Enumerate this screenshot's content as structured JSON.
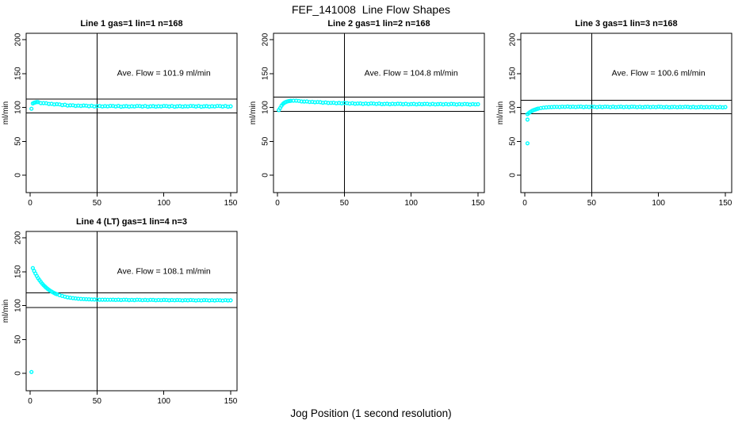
{
  "figure_title": "FEF_141008  Line Flow Shapes",
  "xlabel": "Jog Position (1 second resolution)",
  "colors": {
    "points": "#00FFFF",
    "axis": "#000000",
    "background": "#FFFFFF"
  },
  "chart_data": [
    {
      "type": "scatter",
      "title": "Line 1 gas=1 lin=1 n=168",
      "ylabel": "ml/min",
      "annotation": "Ave. Flow =  101.9   ml/min",
      "ave_flow": 101.9,
      "xlim": [
        0,
        150
      ],
      "ylim": [
        0,
        200
      ],
      "xticks": [
        0,
        50,
        100,
        150
      ],
      "yticks": [
        0,
        50,
        100,
        150,
        200
      ],
      "vline_x": 50,
      "hlines": [
        112.1,
        91.7
      ],
      "marker": "open-circle",
      "color": "#00FFFF",
      "grid": false,
      "legend": "none",
      "points": [
        [
          1,
          98
        ],
        [
          2,
          105.9
        ],
        [
          3,
          106.9
        ],
        [
          4,
          107.5
        ],
        [
          5,
          107.9
        ],
        [
          6,
          107.8
        ],
        [
          8,
          106.3
        ],
        [
          10,
          106.3
        ],
        [
          12,
          106.2
        ],
        [
          14,
          105.1
        ],
        [
          16,
          105.3
        ],
        [
          18,
          104.5
        ],
        [
          20,
          104.8
        ],
        [
          22,
          104.4
        ],
        [
          24,
          103.4
        ],
        [
          26,
          104.0
        ],
        [
          28,
          102.7
        ],
        [
          30,
          103.0
        ],
        [
          32,
          103.1
        ],
        [
          34,
          102.2
        ],
        [
          36,
          102.7
        ],
        [
          38,
          102.2
        ],
        [
          40,
          102.8
        ],
        [
          42,
          102.6
        ],
        [
          44,
          101.8
        ],
        [
          46,
          102.5
        ],
        [
          48,
          101.4
        ],
        [
          50,
          101.9
        ],
        [
          52,
          102.1
        ],
        [
          54,
          101.4
        ],
        [
          56,
          102.0
        ],
        [
          58,
          101.5
        ],
        [
          60,
          102.2
        ],
        [
          62,
          102.1
        ],
        [
          64,
          101.4
        ],
        [
          66,
          102.2
        ],
        [
          68,
          101.1
        ],
        [
          70,
          101.6
        ],
        [
          72,
          101.9
        ],
        [
          74,
          101.2
        ],
        [
          76,
          101.8
        ],
        [
          78,
          101.4
        ],
        [
          80,
          102.1
        ],
        [
          82,
          102.0
        ],
        [
          84,
          101.3
        ],
        [
          86,
          102.1
        ],
        [
          88,
          101.1
        ],
        [
          90,
          101.6
        ],
        [
          92,
          101.9
        ],
        [
          94,
          101.2
        ],
        [
          96,
          101.8
        ],
        [
          98,
          101.4
        ],
        [
          100,
          102.1
        ],
        [
          102,
          102.0
        ],
        [
          104,
          101.3
        ],
        [
          106,
          102.1
        ],
        [
          108,
          101.1
        ],
        [
          110,
          101.6
        ],
        [
          112,
          101.9
        ],
        [
          114,
          101.2
        ],
        [
          116,
          101.8
        ],
        [
          118,
          101.4
        ],
        [
          120,
          102.1
        ],
        [
          122,
          102.0
        ],
        [
          124,
          101.3
        ],
        [
          126,
          102.1
        ],
        [
          128,
          101.1
        ],
        [
          130,
          101.6
        ],
        [
          132,
          101.9
        ],
        [
          134,
          101.2
        ],
        [
          136,
          101.8
        ],
        [
          138,
          101.4
        ],
        [
          140,
          102.1
        ],
        [
          142,
          102.0
        ],
        [
          144,
          101.3
        ],
        [
          146,
          102.1
        ],
        [
          148,
          101.1
        ],
        [
          150,
          101.6
        ]
      ]
    },
    {
      "type": "scatter",
      "title": "Line 2 gas=1 lin=2 n=168",
      "ylabel": "ml/min",
      "annotation": "Ave. Flow =  104.8   ml/min",
      "ave_flow": 104.8,
      "xlim": [
        0,
        150
      ],
      "ylim": [
        0,
        200
      ],
      "xticks": [
        0,
        50,
        100,
        150
      ],
      "yticks": [
        0,
        50,
        100,
        150,
        200
      ],
      "vline_x": 50,
      "hlines": [
        115.3,
        94.3
      ],
      "marker": "open-circle",
      "color": "#00FFFF",
      "grid": false,
      "legend": "none",
      "points": [
        [
          1,
          96
        ],
        [
          2,
          99.0
        ],
        [
          3,
          102.5
        ],
        [
          4,
          104.9
        ],
        [
          5,
          106.5
        ],
        [
          6,
          107.7
        ],
        [
          7,
          108.5
        ],
        [
          8,
          109.1
        ],
        [
          9,
          109.5
        ],
        [
          10,
          109.8
        ],
        [
          12,
          110.0
        ],
        [
          14,
          109.9
        ],
        [
          16,
          109.6
        ],
        [
          18,
          108.8
        ],
        [
          20,
          108.7
        ],
        [
          22,
          108.8
        ],
        [
          24,
          107.9
        ],
        [
          26,
          108.2
        ],
        [
          28,
          107.6
        ],
        [
          30,
          108.0
        ],
        [
          32,
          107.7
        ],
        [
          34,
          106.9
        ],
        [
          36,
          107.4
        ],
        [
          38,
          106.5
        ],
        [
          40,
          106.7
        ],
        [
          42,
          106.9
        ],
        [
          44,
          106.1
        ],
        [
          46,
          106.5
        ],
        [
          48,
          106.0
        ],
        [
          50,
          106.5
        ],
        [
          52,
          106.3
        ],
        [
          54,
          105.6
        ],
        [
          56,
          106.2
        ],
        [
          58,
          105.4
        ],
        [
          60,
          105.7
        ],
        [
          62,
          105.9
        ],
        [
          64,
          105.2
        ],
        [
          66,
          105.7
        ],
        [
          68,
          105.1
        ],
        [
          70,
          105.8
        ],
        [
          72,
          105.6
        ],
        [
          74,
          105.0
        ],
        [
          76,
          105.7
        ],
        [
          78,
          104.8
        ],
        [
          80,
          105.2
        ],
        [
          82,
          105.4
        ],
        [
          84,
          104.7
        ],
        [
          86,
          105.3
        ],
        [
          88,
          104.9
        ],
        [
          90,
          105.4
        ],
        [
          92,
          105.3
        ],
        [
          94,
          104.7
        ],
        [
          96,
          105.3
        ],
        [
          98,
          104.5
        ],
        [
          100,
          104.9
        ],
        [
          102,
          105.2
        ],
        [
          104,
          104.5
        ],
        [
          106,
          105.1
        ],
        [
          108,
          104.7
        ],
        [
          110,
          105.2
        ],
        [
          112,
          105.1
        ],
        [
          114,
          104.5
        ],
        [
          116,
          105.1
        ],
        [
          118,
          104.4
        ],
        [
          120,
          104.8
        ],
        [
          122,
          105.0
        ],
        [
          124,
          104.4
        ],
        [
          126,
          105.0
        ],
        [
          128,
          104.5
        ],
        [
          130,
          105.1
        ],
        [
          132,
          104.9
        ],
        [
          134,
          104.3
        ],
        [
          136,
          104.9
        ],
        [
          138,
          104.4
        ],
        [
          140,
          105.0
        ],
        [
          142,
          104.8
        ],
        [
          144,
          104.2
        ],
        [
          146,
          104.9
        ],
        [
          148,
          104.4
        ],
        [
          150,
          104.7
        ]
      ]
    },
    {
      "type": "scatter",
      "title": "Line 3 gas=1 lin=3 n=168",
      "ylabel": "ml/min",
      "annotation": "Ave. Flow =  100.6   ml/min",
      "ave_flow": 100.6,
      "xlim": [
        0,
        150
      ],
      "ylim": [
        0,
        200
      ],
      "xticks": [
        0,
        50,
        100,
        150
      ],
      "yticks": [
        0,
        50,
        100,
        150,
        200
      ],
      "vline_x": 50,
      "hlines": [
        110.7,
        90.5
      ],
      "marker": "open-circle",
      "color": "#00FFFF",
      "grid": false,
      "legend": "none",
      "points": [
        [
          2,
          47
        ],
        [
          2,
          82
        ],
        [
          2,
          90.0
        ],
        [
          3,
          91.7
        ],
        [
          4,
          93.1
        ],
        [
          5,
          94.3
        ],
        [
          6,
          95.4
        ],
        [
          7,
          96.3
        ],
        [
          8,
          97.0
        ],
        [
          9,
          97.7
        ],
        [
          10,
          98.2
        ],
        [
          12,
          99.1
        ],
        [
          14,
          99.7
        ],
        [
          16,
          100.0
        ],
        [
          18,
          100.3
        ],
        [
          20,
          100.5
        ],
        [
          22,
          100.7
        ],
        [
          24,
          100.8
        ],
        [
          26,
          100.6
        ],
        [
          28,
          101.1
        ],
        [
          30,
          100.8
        ],
        [
          32,
          101.3
        ],
        [
          34,
          100.7
        ],
        [
          36,
          101.1
        ],
        [
          38,
          100.6
        ],
        [
          40,
          101.0
        ],
        [
          42,
          101.2
        ],
        [
          44,
          100.5
        ],
        [
          46,
          101.1
        ],
        [
          48,
          100.6
        ],
        [
          50,
          101.1
        ],
        [
          52,
          100.9
        ],
        [
          54,
          100.4
        ],
        [
          56,
          101.0
        ],
        [
          58,
          100.5
        ],
        [
          60,
          101.1
        ],
        [
          62,
          100.9
        ],
        [
          64,
          100.4
        ],
        [
          66,
          101.0
        ],
        [
          68,
          100.3
        ],
        [
          70,
          100.8
        ],
        [
          72,
          101.0
        ],
        [
          74,
          100.4
        ],
        [
          76,
          100.9
        ],
        [
          78,
          100.5
        ],
        [
          80,
          101.1
        ],
        [
          82,
          100.9
        ],
        [
          84,
          100.3
        ],
        [
          86,
          100.9
        ],
        [
          88,
          100.2
        ],
        [
          90,
          100.7
        ],
        [
          92,
          100.9
        ],
        [
          94,
          100.3
        ],
        [
          96,
          100.8
        ],
        [
          98,
          100.4
        ],
        [
          100,
          101.0
        ],
        [
          102,
          100.8
        ],
        [
          104,
          100.2
        ],
        [
          106,
          100.8
        ],
        [
          108,
          100.1
        ],
        [
          110,
          100.6
        ],
        [
          112,
          100.8
        ],
        [
          114,
          100.2
        ],
        [
          116,
          100.7
        ],
        [
          118,
          100.3
        ],
        [
          120,
          100.9
        ],
        [
          122,
          100.7
        ],
        [
          124,
          100.1
        ],
        [
          126,
          100.7
        ],
        [
          128,
          100.0
        ],
        [
          130,
          100.5
        ],
        [
          132,
          100.7
        ],
        [
          134,
          100.1
        ],
        [
          136,
          100.6
        ],
        [
          138,
          100.2
        ],
        [
          140,
          100.8
        ],
        [
          142,
          100.6
        ],
        [
          144,
          100.0
        ],
        [
          146,
          100.6
        ],
        [
          148,
          100.0
        ],
        [
          150,
          100.5
        ]
      ]
    },
    {
      "type": "scatter",
      "title": "Line 4 (LT) gas=1 lin=4 n=3",
      "ylabel": "ml/min",
      "annotation": "Ave. Flow =  108.1   ml/min",
      "ave_flow": 108.1,
      "xlim": [
        0,
        150
      ],
      "ylim": [
        0,
        200
      ],
      "xticks": [
        0,
        50,
        100,
        150
      ],
      "yticks": [
        0,
        50,
        100,
        150,
        200
      ],
      "vline_x": 50,
      "hlines": [
        118.9,
        97.3
      ],
      "marker": "open-circle",
      "color": "#00FFFF",
      "grid": false,
      "legend": "none",
      "points": [
        [
          1,
          2
        ],
        [
          2,
          155.3
        ],
        [
          3,
          151.0
        ],
        [
          4,
          147.2
        ],
        [
          5,
          143.6
        ],
        [
          6,
          140.4
        ],
        [
          7,
          137.5
        ],
        [
          8,
          134.9
        ],
        [
          9,
          132.4
        ],
        [
          10,
          130.2
        ],
        [
          11,
          128.2
        ],
        [
          12,
          126.4
        ],
        [
          13,
          124.8
        ],
        [
          14,
          123.3
        ],
        [
          15,
          121.9
        ],
        [
          16,
          120.7
        ],
        [
          17,
          119.5
        ],
        [
          18,
          118.5
        ],
        [
          19,
          117.6
        ],
        [
          20,
          116.8
        ],
        [
          22,
          115.3
        ],
        [
          24,
          114.1
        ],
        [
          26,
          113.1
        ],
        [
          28,
          112.2
        ],
        [
          30,
          111.6
        ],
        [
          32,
          111.0
        ],
        [
          34,
          110.5
        ],
        [
          36,
          110.1
        ],
        [
          38,
          109.8
        ],
        [
          40,
          109.6
        ],
        [
          42,
          109.4
        ],
        [
          44,
          109.2
        ],
        [
          46,
          109.0
        ],
        [
          48,
          108.9
        ],
        [
          50,
          108.8
        ],
        [
          52,
          108.7
        ],
        [
          54,
          108.7
        ],
        [
          56,
          108.6
        ],
        [
          58,
          108.5
        ],
        [
          60,
          108.5
        ],
        [
          62,
          108.6
        ],
        [
          64,
          108.3
        ],
        [
          66,
          108.6
        ],
        [
          68,
          108.2
        ],
        [
          70,
          108.5
        ],
        [
          72,
          108.5
        ],
        [
          74,
          108.1
        ],
        [
          76,
          108.4
        ],
        [
          78,
          108.1
        ],
        [
          80,
          108.5
        ],
        [
          82,
          108.4
        ],
        [
          84,
          107.9
        ],
        [
          86,
          108.3
        ],
        [
          88,
          108.0
        ],
        [
          90,
          108.4
        ],
        [
          92,
          108.3
        ],
        [
          94,
          107.8
        ],
        [
          96,
          108.2
        ],
        [
          98,
          107.9
        ],
        [
          100,
          108.3
        ],
        [
          102,
          108.2
        ],
        [
          104,
          107.7
        ],
        [
          106,
          108.2
        ],
        [
          108,
          107.8
        ],
        [
          110,
          108.2
        ],
        [
          112,
          108.1
        ],
        [
          114,
          107.6
        ],
        [
          116,
          108.1
        ],
        [
          118,
          107.7
        ],
        [
          120,
          108.2
        ],
        [
          122,
          108.0
        ],
        [
          124,
          107.5
        ],
        [
          126,
          108.0
        ],
        [
          128,
          107.6
        ],
        [
          130,
          108.1
        ],
        [
          132,
          107.9
        ],
        [
          134,
          107.5
        ],
        [
          136,
          108.0
        ],
        [
          138,
          107.5
        ],
        [
          140,
          108.0
        ],
        [
          142,
          107.8
        ],
        [
          144,
          107.4
        ],
        [
          146,
          107.9
        ],
        [
          148,
          107.5
        ],
        [
          150,
          107.7
        ]
      ]
    }
  ]
}
